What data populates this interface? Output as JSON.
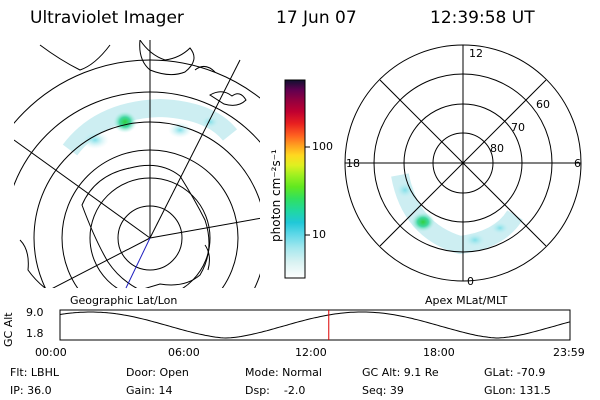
{
  "header": {
    "instrument": "Ultraviolet Imager",
    "date": "17 Jun 07",
    "time": "12:39:58 UT"
  },
  "colorbar": {
    "unit_label": "photon cm⁻²s⁻¹",
    "ticks": [
      {
        "label": "100",
        "value": 100
      },
      {
        "label": "10",
        "value": 10
      }
    ],
    "colors": [
      "#ffffff",
      "#d9f2f2",
      "#a6e8ee",
      "#5fd8e8",
      "#20c8d8",
      "#20d8a0",
      "#30e060",
      "#60e820",
      "#a0f020",
      "#e0f020",
      "#ffd820",
      "#ffa020",
      "#ff6020",
      "#e82020",
      "#c00030",
      "#900040",
      "#600050",
      "#300050",
      "#101030"
    ]
  },
  "left_map": {
    "caption": "Geographic Lat/Lon"
  },
  "right_map": {
    "caption": "Apex MLat/MLT",
    "mlt_labels": {
      "top": "12",
      "left": "18",
      "right": "6",
      "bottom": "0"
    },
    "lat_labels": [
      "60",
      "70",
      "80"
    ]
  },
  "altitude_plot": {
    "y_axis_label": "GC Alt",
    "y_ticks": [
      "9.0",
      "1.8"
    ],
    "x_ticks": [
      "00:00",
      "06:00",
      "12:00",
      "18:00",
      "23:59"
    ],
    "current_time_fraction": 0.527,
    "marker_color": "#dd0000"
  },
  "info": {
    "col1": [
      "Flt: LBHL",
      "IP: 36.0"
    ],
    "col2": [
      "Door: Open",
      "Gain: 14"
    ],
    "col3": [
      "Mode: Normal",
      "Dsp:    -2.0"
    ],
    "col4": [
      "GC Alt: 9.1 Re",
      "Seq: 39"
    ],
    "col5": [
      "GLat: -70.9",
      "GLon: 131.5"
    ]
  }
}
